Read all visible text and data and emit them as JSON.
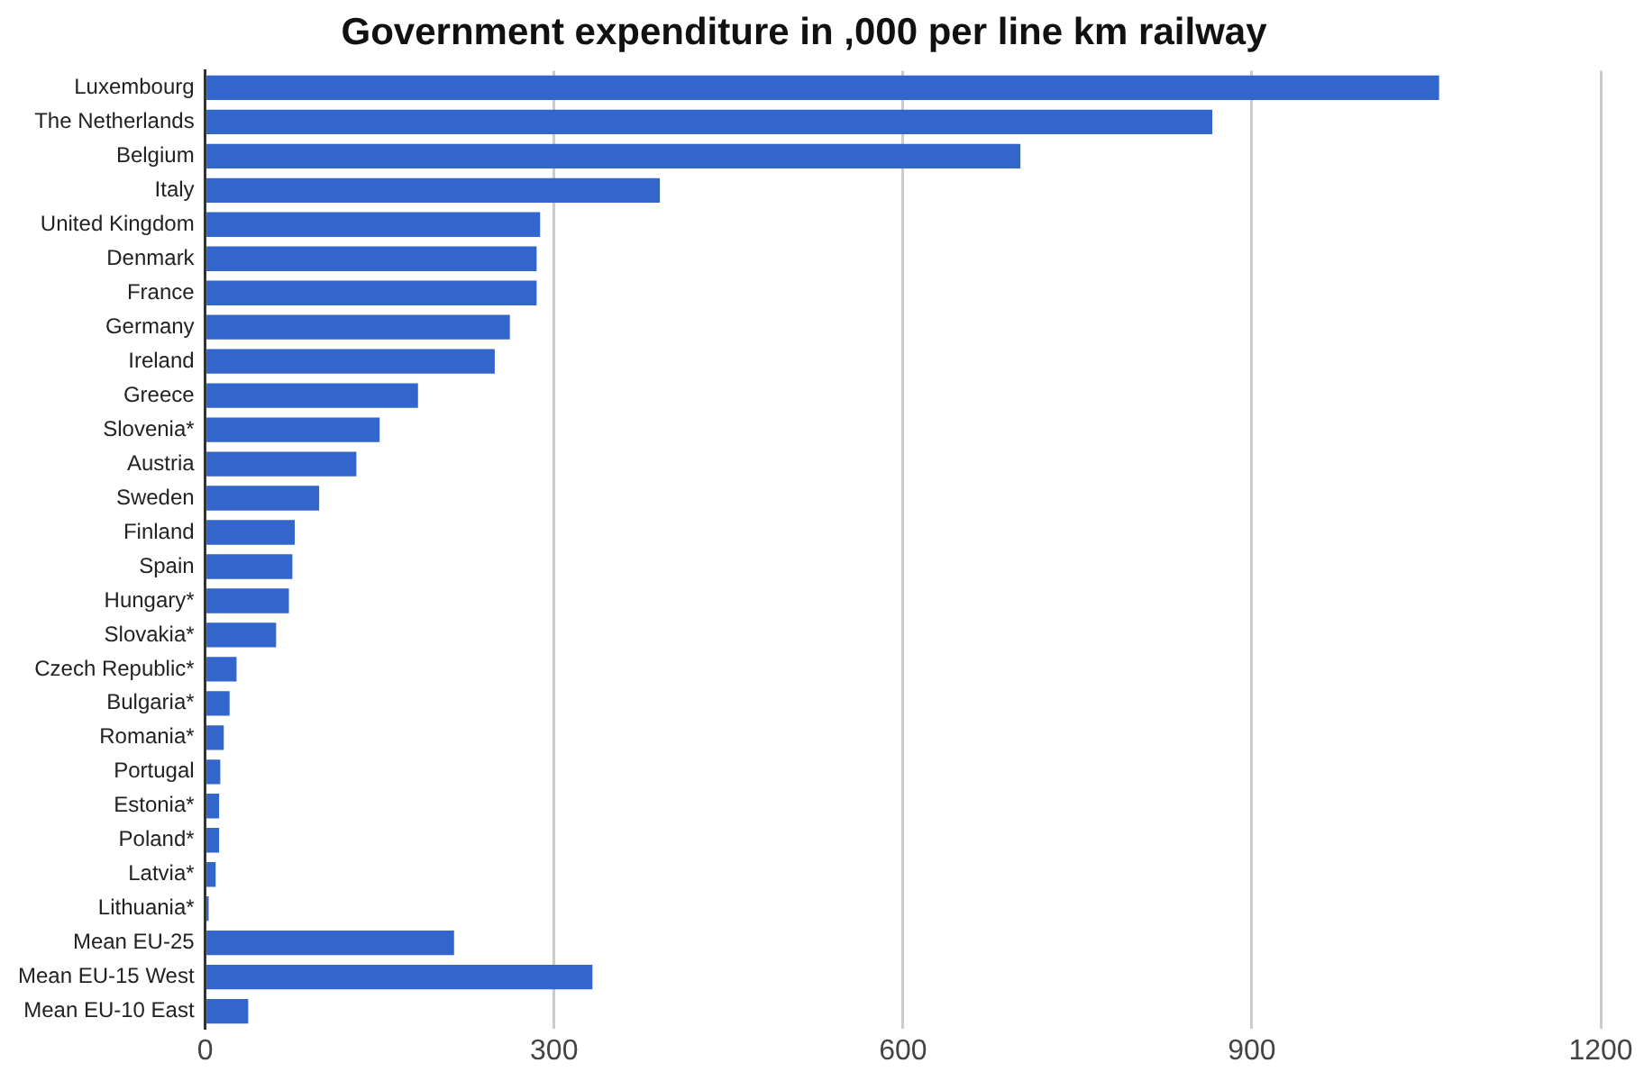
{
  "chart_data": {
    "type": "bar",
    "orientation": "horizontal",
    "title": "Government expenditure in ,000 per line km railway",
    "categories": [
      "Luxembourg",
      "The Netherlands",
      "Belgium",
      "Italy",
      "United Kingdom",
      "Denmark",
      "France",
      "Germany",
      "Ireland",
      "Greece",
      "Slovenia*",
      "Austria",
      "Sweden",
      "Finland",
      "Spain",
      "Hungary*",
      "Slovakia*",
      "Czech Republic*",
      "Bulgaria*",
      "Romania*",
      "Portugal",
      "Estonia*",
      "Poland*",
      "Latvia*",
      "Lithuania*",
      "Mean EU-25",
      "Mean EU-15 West",
      "Mean EU-10 East"
    ],
    "values": [
      1061,
      866,
      701,
      391,
      288,
      285,
      285,
      262,
      249,
      183,
      150,
      130,
      98,
      77,
      75,
      72,
      61,
      27,
      21,
      16,
      13,
      12,
      12,
      9,
      3,
      214,
      333,
      37
    ],
    "color": "#3366cc",
    "xlim": [
      0,
      1200
    ],
    "xticks": [
      0,
      300,
      600,
      900,
      1200
    ],
    "grid": "x"
  }
}
